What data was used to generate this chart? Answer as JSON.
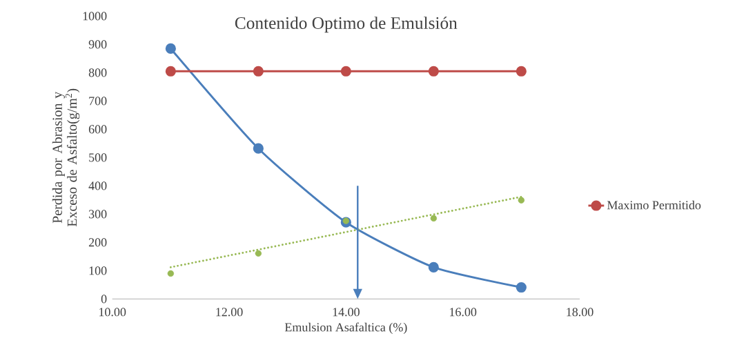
{
  "chart_data": {
    "type": "line",
    "title": "Contenido Optimo de Emulsión",
    "xlabel": "Emulsion Asafaltica (%)",
    "ylabel": "Perdida por Abrasion  y Exceso de Asfalto(g/m$^{2}$)",
    "x": [
      11,
      12.5,
      14,
      15.5,
      17
    ],
    "series": [
      {
        "type": "line",
        "color": "#4a7ebb",
        "values": [
          885,
          532,
          271,
          112,
          41
        ],
        "marker": "circle"
      },
      {
        "type": "line",
        "name": "Maximo Permitido",
        "color": "#be4b48",
        "values": [
          805,
          805,
          805,
          805,
          805
        ],
        "marker": "circle"
      },
      {
        "type": "scatter",
        "color": "#98b954",
        "values": [
          90,
          161,
          276,
          285,
          349
        ],
        "marker": "circle"
      },
      {
        "type": "line",
        "color": "#98b954",
        "x": [
          11,
          17
        ],
        "values": [
          112,
          361
        ],
        "marker": "none",
        "line_style": "dotted"
      }
    ],
    "xlim": [
      10,
      18
    ],
    "xticks": [
      {
        "value": 10,
        "label": "10.00"
      },
      {
        "value": 12,
        "label": "12.00"
      },
      {
        "value": 14,
        "label": "14.00"
      },
      {
        "value": 16,
        "label": "16.00"
      },
      {
        "value": 18,
        "label": "18.00"
      }
    ],
    "ylim": [
      0,
      1000
    ],
    "yticks": [
      0,
      100,
      200,
      300,
      400,
      500,
      600,
      700,
      800,
      900,
      1000
    ],
    "ref_lines": [
      {
        "axis": "x",
        "value": 14.2,
        "color": "#4a7ebb"
      }
    ],
    "grid": false,
    "legend": "right"
  }
}
